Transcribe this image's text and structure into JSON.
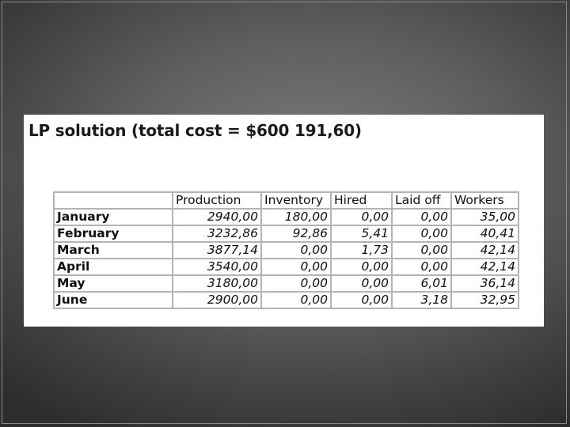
{
  "slide": {
    "title": "LP solution (total cost = $600 191,60)"
  },
  "table": {
    "columns": [
      "Production",
      "Inventory",
      "Hired",
      "Laid off",
      "Workers"
    ],
    "rows": [
      {
        "month": "January",
        "production": "2940,00",
        "inventory": "180,00",
        "hired": "0,00",
        "laid_off": "0,00",
        "workers": "35,00"
      },
      {
        "month": "February",
        "production": "3232,86",
        "inventory": "92,86",
        "hired": "5,41",
        "laid_off": "0,00",
        "workers": "40,41"
      },
      {
        "month": "March",
        "production": "3877,14",
        "inventory": "0,00",
        "hired": "1,73",
        "laid_off": "0,00",
        "workers": "42,14"
      },
      {
        "month": "April",
        "production": "3540,00",
        "inventory": "0,00",
        "hired": "0,00",
        "laid_off": "0,00",
        "workers": "42,14"
      },
      {
        "month": "May",
        "production": "3180,00",
        "inventory": "0,00",
        "hired": "0,00",
        "laid_off": "6,01",
        "workers": "36,14"
      },
      {
        "month": "June",
        "production": "2900,00",
        "inventory": "0,00",
        "hired": "0,00",
        "laid_off": "3,18",
        "workers": "32,95"
      }
    ]
  }
}
